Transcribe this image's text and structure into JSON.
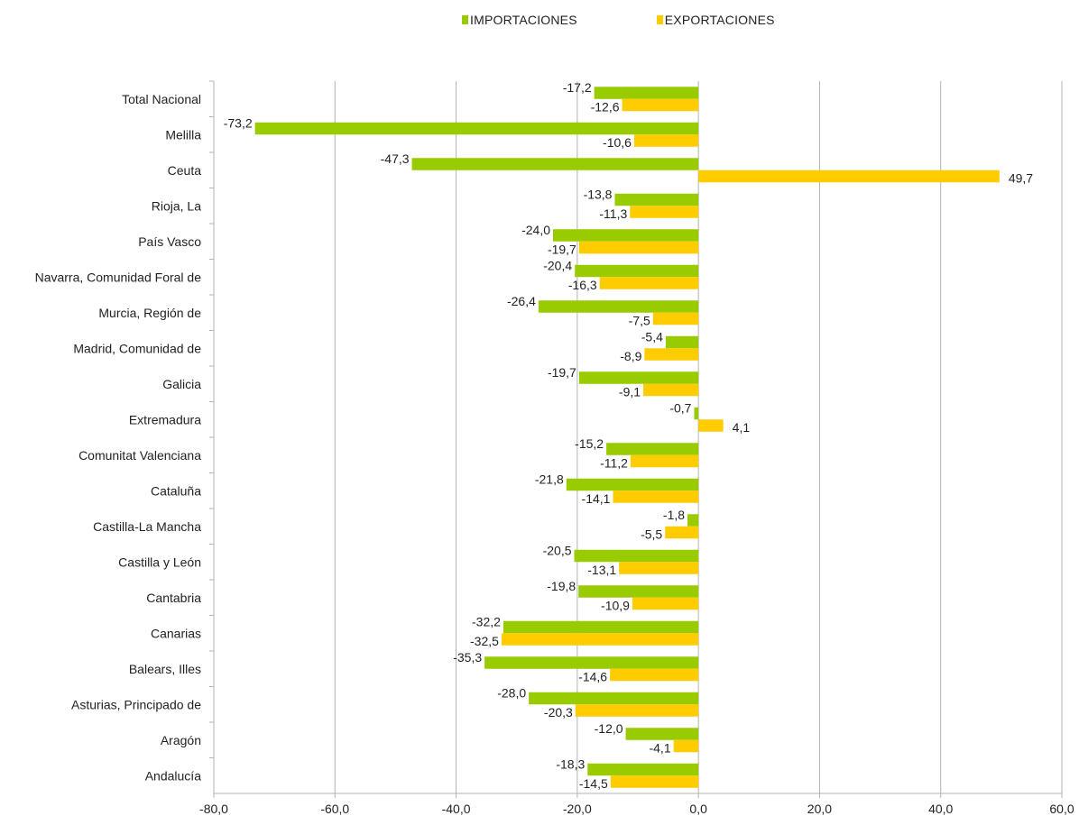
{
  "chart_data": {
    "type": "bar",
    "orientation": "horizontal",
    "title": "",
    "xlabel": "",
    "ylabel": "",
    "xlim": [
      -80,
      60
    ],
    "x_ticks": [
      -80,
      -60,
      -40,
      -20,
      0,
      20,
      40,
      60
    ],
    "x_tick_labels": [
      "-80,0",
      "-60,0",
      "-40,0",
      "-20,0",
      "0,0",
      "20,0",
      "40,0",
      "60,0"
    ],
    "grid": "vertical",
    "legend_position": "top",
    "categories": [
      "Total Nacional",
      "Melilla",
      "Ceuta",
      "Rioja, La",
      "País Vasco",
      "Navarra, Comunidad Foral de",
      "Murcia, Región de",
      "Madrid, Comunidad de",
      "Galicia",
      "Extremadura",
      "Comunitat Valenciana",
      "Cataluña",
      "Castilla-La Mancha",
      "Castilla y León",
      "Cantabria",
      "Canarias",
      "Balears, Illes",
      "Asturias, Principado de",
      "Aragón",
      "Andalucía"
    ],
    "series": [
      {
        "name": "IMPORTACIONES",
        "color": "#99cc00",
        "values": [
          -17.2,
          -73.2,
          -47.3,
          -13.8,
          -24.0,
          -20.4,
          -26.4,
          -5.4,
          -19.7,
          -0.7,
          -15.2,
          -21.8,
          -1.8,
          -20.5,
          -19.8,
          -32.2,
          -35.3,
          -28.0,
          -12.0,
          -18.3
        ],
        "labels": [
          "-17,2",
          "-73,2",
          "-47,3",
          "-13,8",
          "-24,0",
          "-20,4",
          "-26,4",
          "-5,4",
          "-19,7",
          "-0,7",
          "-15,2",
          "-21,8",
          "-1,8",
          "-20,5",
          "-19,8",
          "-32,2",
          "-35,3",
          "-28,0",
          "-12,0",
          "-18,3"
        ]
      },
      {
        "name": "EXPORTACIONES",
        "color": "#ffcc00",
        "values": [
          -12.6,
          -10.6,
          49.7,
          -11.3,
          -19.7,
          -16.3,
          -7.5,
          -8.9,
          -9.1,
          4.1,
          -11.2,
          -14.1,
          -5.5,
          -13.1,
          -10.9,
          -32.5,
          -14.6,
          -20.3,
          -4.1,
          -14.5
        ],
        "labels": [
          "-12,6",
          "-10,6",
          "49,7",
          "-11,3",
          "-19,7",
          "-16,3",
          "-7,5",
          "-8,9",
          "-9,1",
          "4,1",
          "-11,2",
          "-14,1",
          "-5,5",
          "-13,1",
          "-10,9",
          "-32,5",
          "-14,6",
          "-20,3",
          "-4,1",
          "-14,5"
        ]
      }
    ]
  }
}
